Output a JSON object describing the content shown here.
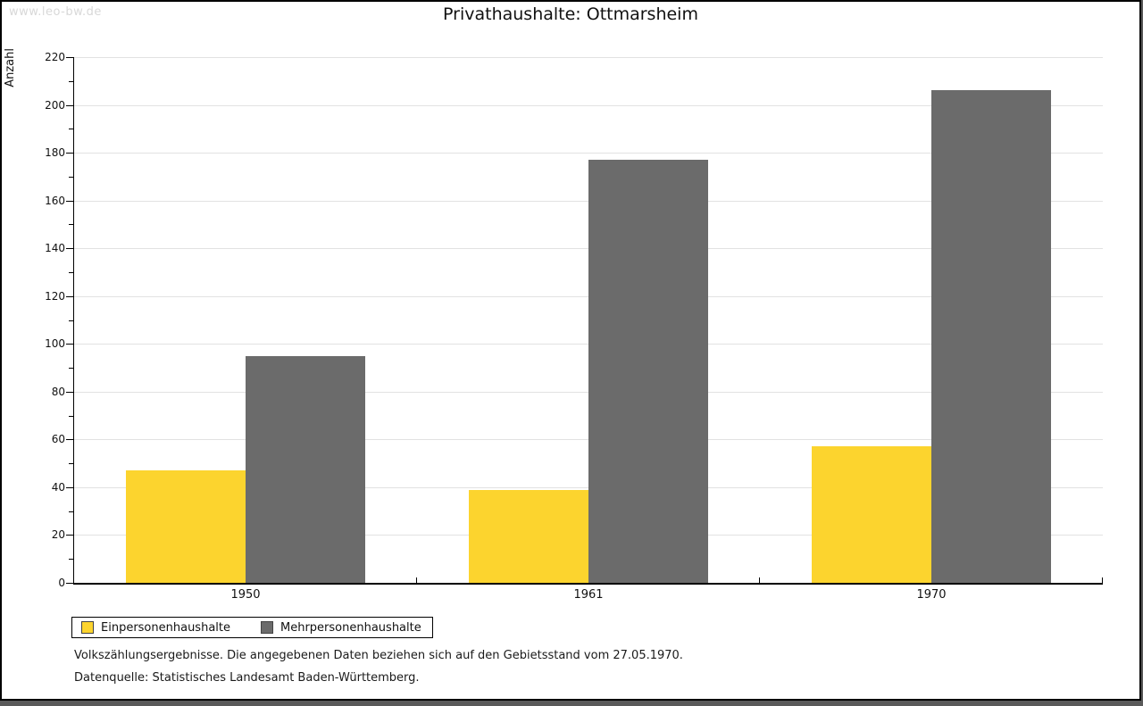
{
  "watermark": "www.leo-bw.de",
  "title": "Privathaushalte: Ottmarsheim",
  "chart_data": {
    "type": "bar",
    "title": "Privathaushalte: Ottmarsheim",
    "xlabel": "",
    "ylabel": "Anzahl",
    "categories": [
      "1950",
      "1961",
      "1970"
    ],
    "series": [
      {
        "name": "Einpersonenhaushalte",
        "color": "#fcd42e",
        "values": [
          47,
          39,
          57
        ]
      },
      {
        "name": "Mehrpersonenhaushalte",
        "color": "#6b6b6b",
        "values": [
          95,
          177,
          206
        ]
      }
    ],
    "ylim": [
      0,
      220
    ],
    "ytick_step": 20,
    "yticks": [
      0,
      20,
      40,
      60,
      80,
      100,
      120,
      140,
      160,
      180,
      200,
      220
    ],
    "grid": true,
    "gridline_color": "#e2e2e2",
    "legend_position": "bottom-left"
  },
  "footer": {
    "line1": "Volkszählungsergebnisse. Die angegebenen Daten beziehen sich auf den Gebietsstand vom 27.05.1970.",
    "line2": "Datenquelle: Statistisches Landesamt Baden-Württemberg."
  }
}
